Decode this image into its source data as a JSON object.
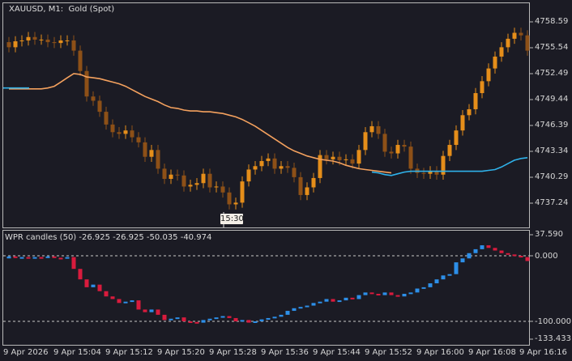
{
  "symbol_title": "XAUUSD, M1:  Gold (Spot)",
  "indicator_title": "WPR candles (50) -26.925 -26.925 -50.035 -40.974",
  "crosshair_time": "15:30",
  "price_axis": [
    "4758.59",
    "4755.54",
    "4752.49",
    "4749.44",
    "4746.39",
    "4743.34",
    "4740.29",
    "4737.24"
  ],
  "indicator_axis": [
    "37.590",
    "0.000",
    "-100.000",
    "-133.433"
  ],
  "time_axis": [
    "9 Apr 2026",
    "9 Apr 15:04",
    "9 Apr 15:12",
    "9 Apr 15:20",
    "9 Apr 15:28",
    "9 Apr 15:36",
    "9 Apr 15:44",
    "9 Apr 15:52",
    "9 Apr 16:00",
    "9 Apr 16:08",
    "9 Apr 16:16"
  ],
  "colors": {
    "candle_up": "#e58e1a",
    "candle_down": "#8d5017",
    "ma_orange": "#f4a15e",
    "ma_blue": "#2fb2ea",
    "wpr_up": "#2d8fe8",
    "wpr_down": "#d81b3d"
  },
  "chart_data": [
    {
      "type": "candlestick",
      "title": "XAUUSD, M1:  Gold (Spot)",
      "ylim": [
        4736.0,
        4760.0
      ],
      "x": [
        "15:00",
        "15:01",
        "15:02",
        "15:03",
        "15:04",
        "15:05",
        "15:06",
        "15:07",
        "15:08",
        "15:09",
        "15:10",
        "15:11",
        "15:12",
        "15:13",
        "15:14",
        "15:15",
        "15:16",
        "15:17",
        "15:18",
        "15:19",
        "15:20",
        "15:21",
        "15:22",
        "15:23",
        "15:24",
        "15:25",
        "15:26",
        "15:27",
        "15:28",
        "15:29",
        "15:30",
        "15:31",
        "15:32",
        "15:33",
        "15:34",
        "15:35",
        "15:36",
        "15:37",
        "15:38",
        "15:39",
        "15:40",
        "15:41",
        "15:42",
        "15:43",
        "15:44",
        "15:45",
        "15:46",
        "15:47",
        "15:48",
        "15:49",
        "15:50",
        "15:51",
        "15:52",
        "15:53",
        "15:54",
        "15:55",
        "15:56",
        "15:57",
        "15:58",
        "15:59",
        "16:00",
        "16:01",
        "16:02",
        "16:03",
        "16:04",
        "16:05",
        "16:06",
        "16:07",
        "16:08",
        "16:09",
        "16:10",
        "16:11",
        "16:12",
        "16:13",
        "16:14",
        "16:15",
        "16:16",
        "16:17",
        "16:18",
        "16:19",
        "16:20"
      ],
      "open": [
        4756.2,
        4755.6,
        4756.3,
        4756.4,
        4756.8,
        4756.5,
        4756.5,
        4756.2,
        4756.1,
        4756.4,
        4756.4,
        4755.2,
        4752.8,
        4749.8,
        4749.3,
        4748.0,
        4746.5,
        4745.6,
        4745.4,
        4745.8,
        4745.0,
        4744.4,
        4742.7,
        4743.5,
        4741.3,
        4740.1,
        4740.6,
        4740.5,
        4739.2,
        4739.4,
        4739.6,
        4740.7,
        4739.1,
        4739.2,
        4738.5,
        4737.1,
        4737.3,
        4739.8,
        4741.2,
        4741.6,
        4742.2,
        4742.5,
        4741.3,
        4741.6,
        4741.4,
        4740.3,
        4738.2,
        4739.1,
        4740.2,
        4742.9,
        4742.4,
        4742.7,
        4742.3,
        4742.4,
        4741.9,
        4743.5,
        4745.6,
        4746.3,
        4745.4,
        4743.3,
        4743.1,
        4744.1,
        4743.9,
        4741.3,
        4740.8,
        4740.7,
        4741.0,
        4740.6,
        4742.8,
        4744.1,
        4745.8,
        4747.6,
        4748.3,
        4750.2,
        4751.6,
        4753.1,
        4754.5,
        4755.6,
        4756.6,
        4757.3,
        4757.0
      ],
      "close": [
        4755.6,
        4756.3,
        4756.4,
        4756.8,
        4756.5,
        4756.5,
        4756.2,
        4756.1,
        4756.4,
        4756.4,
        4755.2,
        4752.8,
        4749.8,
        4749.3,
        4748.0,
        4746.5,
        4745.6,
        4745.4,
        4745.8,
        4745.0,
        4744.4,
        4742.7,
        4743.5,
        4741.3,
        4740.1,
        4740.6,
        4740.5,
        4739.2,
        4739.4,
        4739.6,
        4740.7,
        4739.1,
        4739.2,
        4738.5,
        4737.1,
        4737.3,
        4739.8,
        4741.2,
        4741.6,
        4742.2,
        4742.5,
        4741.3,
        4741.6,
        4741.4,
        4740.3,
        4738.2,
        4739.1,
        4740.2,
        4742.9,
        4742.4,
        4742.7,
        4742.3,
        4742.4,
        4741.9,
        4743.5,
        4745.6,
        4746.3,
        4745.4,
        4743.3,
        4743.1,
        4744.1,
        4743.9,
        4741.3,
        4740.8,
        4740.7,
        4741.0,
        4740.6,
        4742.8,
        4744.1,
        4745.8,
        4747.6,
        4748.3,
        4750.2,
        4751.6,
        4753.1,
        4754.5,
        4755.6,
        4756.6,
        4757.3,
        4757.0,
        4755.2
      ]
    },
    {
      "type": "line",
      "series": [],
      "ma_orange": [
        4750.7,
        4750.7,
        4750.7,
        4750.7,
        4750.7,
        4750.7,
        4750.8,
        4751.0,
        4751.5,
        4752.0,
        4752.5,
        4752.4,
        4752.1,
        4752.0,
        4751.9,
        4751.7,
        4751.5,
        4751.3,
        4751.0,
        4750.6,
        4750.2,
        4749.8,
        4749.5,
        4749.2,
        4748.8,
        4748.5,
        4748.4,
        4748.2,
        4748.1,
        4748.1,
        4748.0,
        4748.0,
        4747.9,
        4747.8,
        4747.6,
        4747.4,
        4747.1,
        4746.7,
        4746.3,
        4745.8,
        4745.3,
        4744.8,
        4744.3,
        4743.8,
        4743.4,
        4743.1,
        4742.8,
        4742.6,
        4742.4,
        4742.3,
        4742.2,
        4742.0,
        4741.7,
        4741.5,
        4741.3,
        4741.2,
        4741.1,
        4741.0,
        4740.9,
        4740.8
      ],
      "ma_blue_start_index": 56,
      "ma_blue": [
        4740.9,
        4740.8,
        4740.6,
        4740.5,
        4740.7,
        4740.9,
        4741.0,
        4741.0,
        4741.0,
        4741.0,
        4741.0,
        4741.0,
        4741.0,
        4741.0,
        4741.0,
        4741.0,
        4741.0,
        4741.0,
        4741.1,
        4741.2,
        4741.5,
        4741.9,
        4742.3,
        4742.5,
        4742.6,
        4743.0,
        4743.4,
        4743.4,
        4743.4,
        4743.4,
        4743.4,
        4743.4,
        4743.4,
        4743.4,
        4743.5,
        4743.8,
        4744.3,
        4744.8,
        4745.3,
        4745.9,
        4746.5,
        4747.1,
        4747.7,
        4748.2,
        4748.7,
        4749.1,
        4749.4
      ]
    },
    {
      "type": "candlestick",
      "title": "WPR candles (50) -26.925 -26.925 -50.035 -40.974",
      "ylim": [
        -133.433,
        37.59
      ],
      "levels": [
        0,
        -100
      ],
      "open": [
        -4,
        -1,
        -3,
        -2,
        -4,
        -2,
        -3,
        -1,
        -3,
        -4,
        -2,
        -20,
        -36,
        -48,
        -44,
        -54,
        -62,
        -66,
        -72,
        -70,
        -68,
        -82,
        -86,
        -82,
        -90,
        -98,
        -96,
        -94,
        -100,
        -101,
        -102,
        -98,
        -96,
        -94,
        -92,
        -95,
        -100,
        -98,
        -102,
        -100,
        -97,
        -95,
        -93,
        -90,
        -84,
        -80,
        -78,
        -76,
        -72,
        -70,
        -66,
        -70,
        -68,
        -64,
        -66,
        -60,
        -56,
        -58,
        -60,
        -56,
        -60,
        -62,
        -58,
        -56,
        -50,
        -48,
        -42,
        -36,
        -30,
        -28,
        -10,
        -4,
        4,
        10,
        16,
        12,
        8,
        4,
        2,
        0,
        -2
      ],
      "close": [
        -1,
        -3,
        -2,
        -4,
        -2,
        -3,
        -1,
        -3,
        -4,
        -2,
        -20,
        -36,
        -48,
        -44,
        -54,
        -62,
        -66,
        -72,
        -70,
        -68,
        -82,
        -86,
        -82,
        -90,
        -98,
        -96,
        -94,
        -100,
        -101,
        -102,
        -98,
        -96,
        -94,
        -92,
        -95,
        -100,
        -98,
        -102,
        -100,
        -97,
        -95,
        -93,
        -90,
        -84,
        -80,
        -78,
        -76,
        -72,
        -70,
        -66,
        -70,
        -68,
        -64,
        -66,
        -60,
        -56,
        -58,
        -60,
        -56,
        -60,
        -62,
        -58,
        -56,
        -50,
        -48,
        -42,
        -36,
        -30,
        -28,
        -10,
        -4,
        4,
        10,
        16,
        12,
        8,
        4,
        2,
        0,
        -2,
        -8
      ]
    }
  ]
}
